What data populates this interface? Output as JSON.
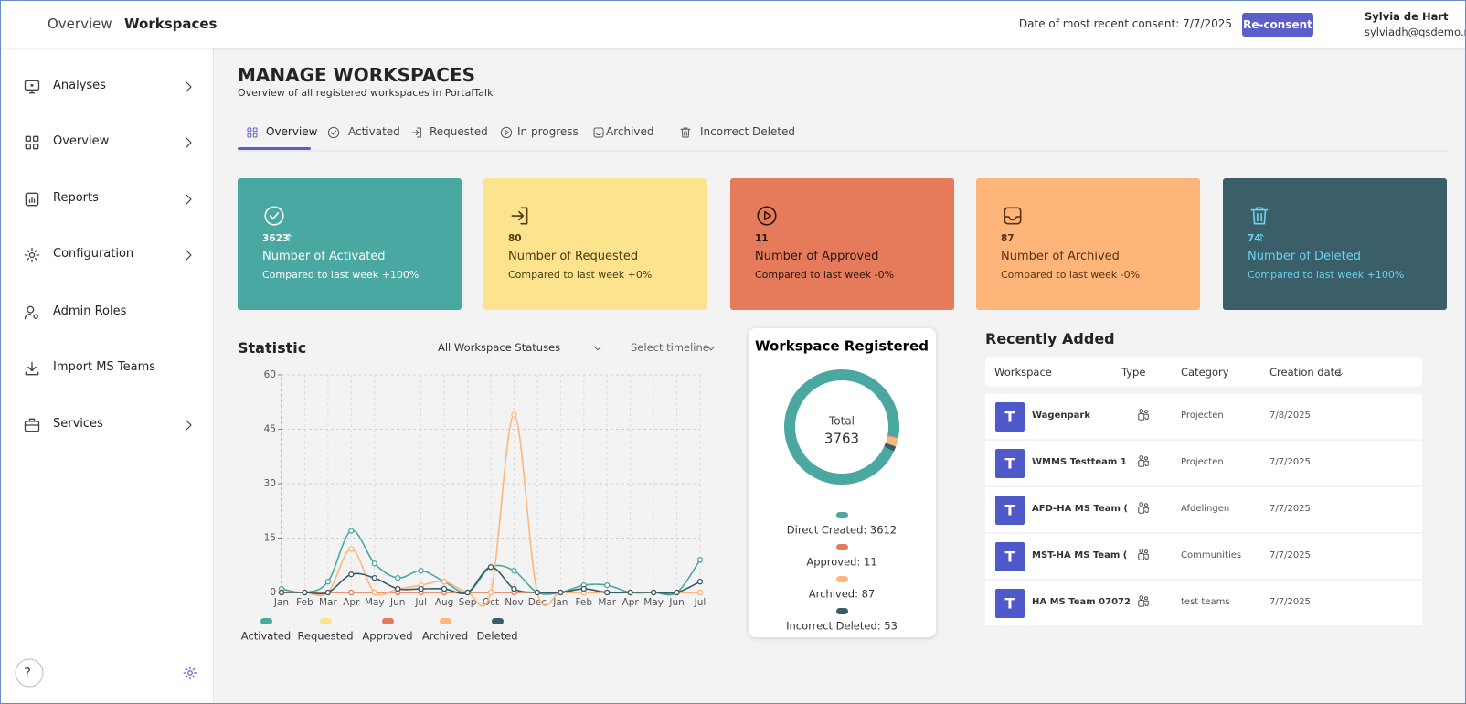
{
  "header": {
    "breadcrumb_parent": "Overview",
    "breadcrumb_current": "Workspaces",
    "consent_label": "Date of most recent consent: 7/7/2025",
    "reconsent_button": "Re-consent",
    "user_name": "Sylvia de Hart",
    "user_email": "sylviadh@qsdemo.nl"
  },
  "sidebar": {
    "items": [
      "Analyses",
      "Overview",
      "Reports",
      "Configuration",
      "Admin Roles",
      "Import MS Teams",
      "Services"
    ],
    "help": "?"
  },
  "page": {
    "title": "MANAGE WORKSPACES",
    "subtitle": "Overview of all registered workspaces in PortalTalk"
  },
  "tabs": [
    "Overview",
    "Activated",
    "Requested",
    "In progress",
    "Archived",
    "Incorrect Deleted"
  ],
  "cards": [
    {
      "value": 3623,
      "title": "Number of Activated",
      "comparison": "Compared to last week +100%",
      "color": "#4aa8a2"
    },
    {
      "value": 80,
      "title": "Number of Requested",
      "comparison": "Compared to last week +0%",
      "color": "#fde38d"
    },
    {
      "value": 11,
      "title": "Number of Approved",
      "comparison": "Compared to last week -0%",
      "color": "#e57b5b"
    },
    {
      "value": 87,
      "title": "Number of Archived",
      "comparison": "Compared to last week -0%",
      "color": "#fdb57a"
    },
    {
      "value": 74,
      "title": "Number of Deleted",
      "comparison": "Compared to last week +100%",
      "color": "#3a5f69"
    }
  ],
  "statistic_filters": [
    "All Workspace Statuses",
    "Select timeline"
  ],
  "chart_data": [
    {
      "type": "line",
      "title": "Statistic",
      "categories": [
        "Jan",
        "Feb",
        "Mar",
        "Apr",
        "May",
        "Jun",
        "Jul",
        "Aug",
        "Sep",
        "Oct",
        "Nov",
        "Dec",
        "Jan",
        "Feb",
        "Mar",
        "Apr",
        "May",
        "Jun",
        "Jul"
      ],
      "series": [
        {
          "name": "Activated",
          "color": "#4ba8a0",
          "values": [
            1,
            0,
            3,
            17,
            8,
            4,
            6,
            3,
            0,
            7,
            6,
            0,
            0,
            2,
            2,
            0,
            0,
            0,
            9
          ]
        },
        {
          "name": "Requested",
          "color": "#fde38a",
          "values": [
            0,
            0,
            0,
            0,
            0,
            0,
            0,
            0,
            0,
            0,
            0,
            0,
            0,
            0,
            0,
            0,
            0,
            0,
            0
          ]
        },
        {
          "name": "Approved",
          "color": "#e57a5a",
          "values": [
            0,
            0,
            0,
            0,
            0,
            0,
            0,
            0,
            0,
            0,
            0,
            0,
            0,
            0,
            0,
            0,
            0,
            0,
            0
          ]
        },
        {
          "name": "Archived",
          "color": "#fdb67c",
          "values": [
            0,
            0,
            0,
            12,
            0,
            1,
            2,
            3,
            0,
            0,
            49,
            0,
            0,
            0,
            0,
            0,
            0,
            0,
            0
          ]
        },
        {
          "name": "Deleted",
          "color": "#365c66",
          "values": [
            0,
            0,
            0,
            5,
            4,
            1,
            1,
            1,
            0,
            7,
            1,
            0,
            0,
            1,
            0,
            0,
            0,
            0,
            3
          ]
        }
      ],
      "ylim": [
        0,
        60
      ],
      "yticks": [
        0,
        15,
        30,
        45,
        60
      ],
      "grid": true
    },
    {
      "type": "pie",
      "title": "Workspace Registered",
      "total_label": "Total",
      "total": 3763,
      "values": [
        3612,
        11,
        87,
        53
      ],
      "value_labels": [
        "Direct Created: 3612",
        "Approved: 11",
        "Archived: 87",
        "Incorrect Deleted: 53"
      ],
      "colors": [
        "#4ba8a0",
        "#e57a5a",
        "#fdb67c",
        "#365c66"
      ]
    }
  ],
  "recently_added": {
    "title": "Recently Added",
    "columns": [
      "Workspace",
      "Type",
      "Category",
      "Creation date"
    ],
    "rows": [
      {
        "workspace": "Wagenpark",
        "category": "Projecten",
        "creation_date": "7/8/2025"
      },
      {
        "workspace": "WMMS Testteam 1",
        "category": "Projecten",
        "creation_date": "7/7/2025"
      },
      {
        "workspace": "AFD-HA MS Team (",
        "category": "Afdelingen",
        "creation_date": "7/7/2025"
      },
      {
        "workspace": "MST-HA MS Team (",
        "category": "Communities",
        "creation_date": "7/7/2025"
      },
      {
        "workspace": "HA MS Team 07072",
        "category": "test teams",
        "creation_date": "7/7/2025"
      }
    ]
  }
}
